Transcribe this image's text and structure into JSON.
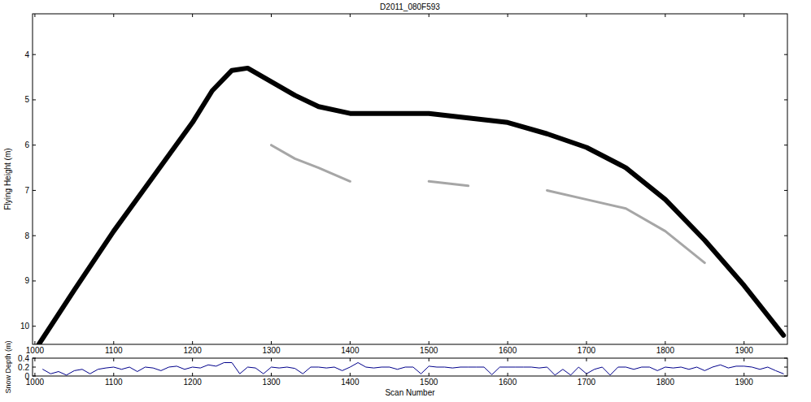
{
  "chart_data": [
    {
      "type": "line",
      "title": "D2011_080F593",
      "ylabel": "Flying Height (m)",
      "x": [
        1005,
        1050,
        1100,
        1150,
        1200,
        1225,
        1250,
        1270,
        1300,
        1330,
        1360,
        1400,
        1450,
        1500,
        1550,
        1600,
        1650,
        1700,
        1750,
        1800,
        1850,
        1900,
        1950
      ],
      "series": [
        {
          "color": "#000000",
          "values": [
            10.4,
            9.2,
            7.9,
            6.7,
            5.5,
            4.8,
            4.35,
            4.3,
            4.6,
            4.9,
            5.15,
            5.3,
            5.3,
            5.3,
            5.4,
            5.5,
            5.75,
            6.05,
            6.5,
            7.2,
            8.1,
            9.1,
            10.2
          ]
        },
        {
          "color": "#808080",
          "values": [
            null,
            null,
            null,
            null,
            null,
            null,
            null,
            null,
            6.0,
            6.3,
            6.5,
            6.8,
            null,
            6.8,
            6.9,
            null,
            7.0,
            7.2,
            7.4,
            7.9,
            8.6,
            null,
            null
          ]
        }
      ],
      "xlim": [
        997,
        1955
      ],
      "xticks": [
        1000,
        1100,
        1200,
        1300,
        1400,
        1500,
        1600,
        1700,
        1800,
        1900
      ],
      "ylim": [
        10.4,
        3.1
      ],
      "yticks": [
        4,
        5,
        6,
        7,
        8,
        9,
        10
      ],
      "grid": false
    },
    {
      "type": "line",
      "xlabel": "Scan Number",
      "ylabel": "Snow Depth (m)",
      "x": [
        1010,
        1020,
        1030,
        1040,
        1050,
        1060,
        1070,
        1080,
        1090,
        1100,
        1110,
        1120,
        1130,
        1140,
        1150,
        1160,
        1170,
        1180,
        1190,
        1200,
        1210,
        1220,
        1230,
        1240,
        1250,
        1260,
        1270,
        1280,
        1290,
        1300,
        1310,
        1320,
        1330,
        1340,
        1350,
        1360,
        1370,
        1380,
        1390,
        1400,
        1410,
        1420,
        1430,
        1440,
        1450,
        1460,
        1470,
        1480,
        1490,
        1500,
        1510,
        1520,
        1530,
        1540,
        1550,
        1560,
        1570,
        1580,
        1590,
        1600,
        1610,
        1620,
        1630,
        1640,
        1650,
        1660,
        1670,
        1680,
        1690,
        1700,
        1710,
        1720,
        1730,
        1740,
        1750,
        1760,
        1770,
        1780,
        1790,
        1800,
        1810,
        1820,
        1830,
        1840,
        1850,
        1860,
        1870,
        1880,
        1890,
        1900,
        1910,
        1920,
        1930,
        1940,
        1950
      ],
      "series": [
        {
          "color": "#00008b",
          "values": [
            0.15,
            0.05,
            0.1,
            0.02,
            0.12,
            0.15,
            0.05,
            0.15,
            0.18,
            0.2,
            0.15,
            0.2,
            0.1,
            0.2,
            0.18,
            0.12,
            0.2,
            0.22,
            0.15,
            0.2,
            0.18,
            0.25,
            0.22,
            0.3,
            0.3,
            0.05,
            0.2,
            0.18,
            0.05,
            0.2,
            0.18,
            0.2,
            0.17,
            0.05,
            0.2,
            0.2,
            0.18,
            0.2,
            0.12,
            0.2,
            0.3,
            0.2,
            0.18,
            0.2,
            0.2,
            0.15,
            0.2,
            0.2,
            0.05,
            0.22,
            0.2,
            0.2,
            0.18,
            0.2,
            0.2,
            0.2,
            0.2,
            0.03,
            0.2,
            0.2,
            0.2,
            0.2,
            0.2,
            0.18,
            0.2,
            0.02,
            0.15,
            0.02,
            0.2,
            0.05,
            0.15,
            0.2,
            0.02,
            0.2,
            0.2,
            0.15,
            0.2,
            0.2,
            0.12,
            0.2,
            0.18,
            0.2,
            0.15,
            0.2,
            0.12,
            0.2,
            0.25,
            0.18,
            0.22,
            0.22,
            0.2,
            0.15,
            0.2,
            0.12,
            0.05
          ]
        }
      ],
      "xlim": [
        997,
        1955
      ],
      "xticks": [
        1000,
        1100,
        1200,
        1300,
        1400,
        1500,
        1600,
        1700,
        1800,
        1900
      ],
      "ylim": [
        0,
        0.4
      ],
      "yticks": [
        0,
        0.2,
        0.4
      ],
      "grid": false
    }
  ]
}
